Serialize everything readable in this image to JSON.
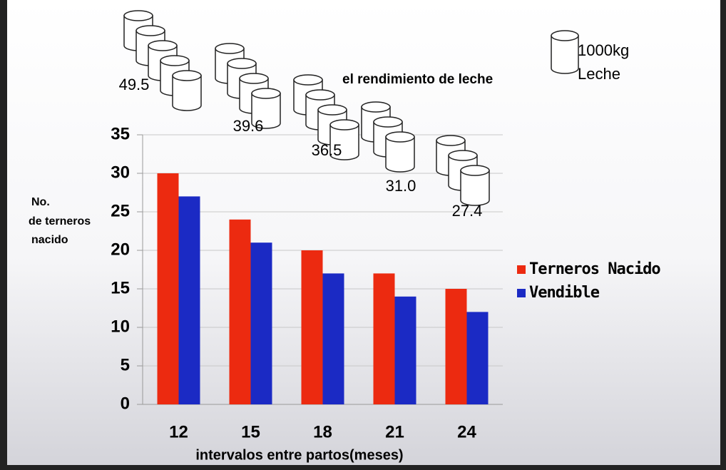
{
  "chart_data": {
    "type": "bar",
    "ylabel": [
      "No.",
      "de terneros",
      "nacido"
    ],
    "xlabel": "intervalos entre partos(meses)",
    "categories": [
      "12",
      "15",
      "18",
      "21",
      "24"
    ],
    "series": [
      {
        "name": "Terneros Nacido",
        "color": "#ec2a10",
        "values": [
          30,
          24,
          20,
          17,
          15
        ]
      },
      {
        "name": "Vendible",
        "color": "#1b2ac4",
        "values": [
          27,
          21,
          17,
          14,
          12
        ]
      }
    ],
    "ylim": [
      0,
      35
    ],
    "yticks": [
      0,
      5,
      10,
      15,
      20,
      25,
      30,
      35
    ],
    "grid": true,
    "legend": "right",
    "milk_yield": {
      "label": "el rendimiento de leche",
      "unit": "1000kg",
      "unit_name": "Leche",
      "values": [
        49.5,
        39.6,
        36.5,
        31.0,
        27.4
      ],
      "value_labels": [
        "49.5",
        "39.6",
        "36.5",
        "31.0",
        "27.4"
      ]
    }
  }
}
